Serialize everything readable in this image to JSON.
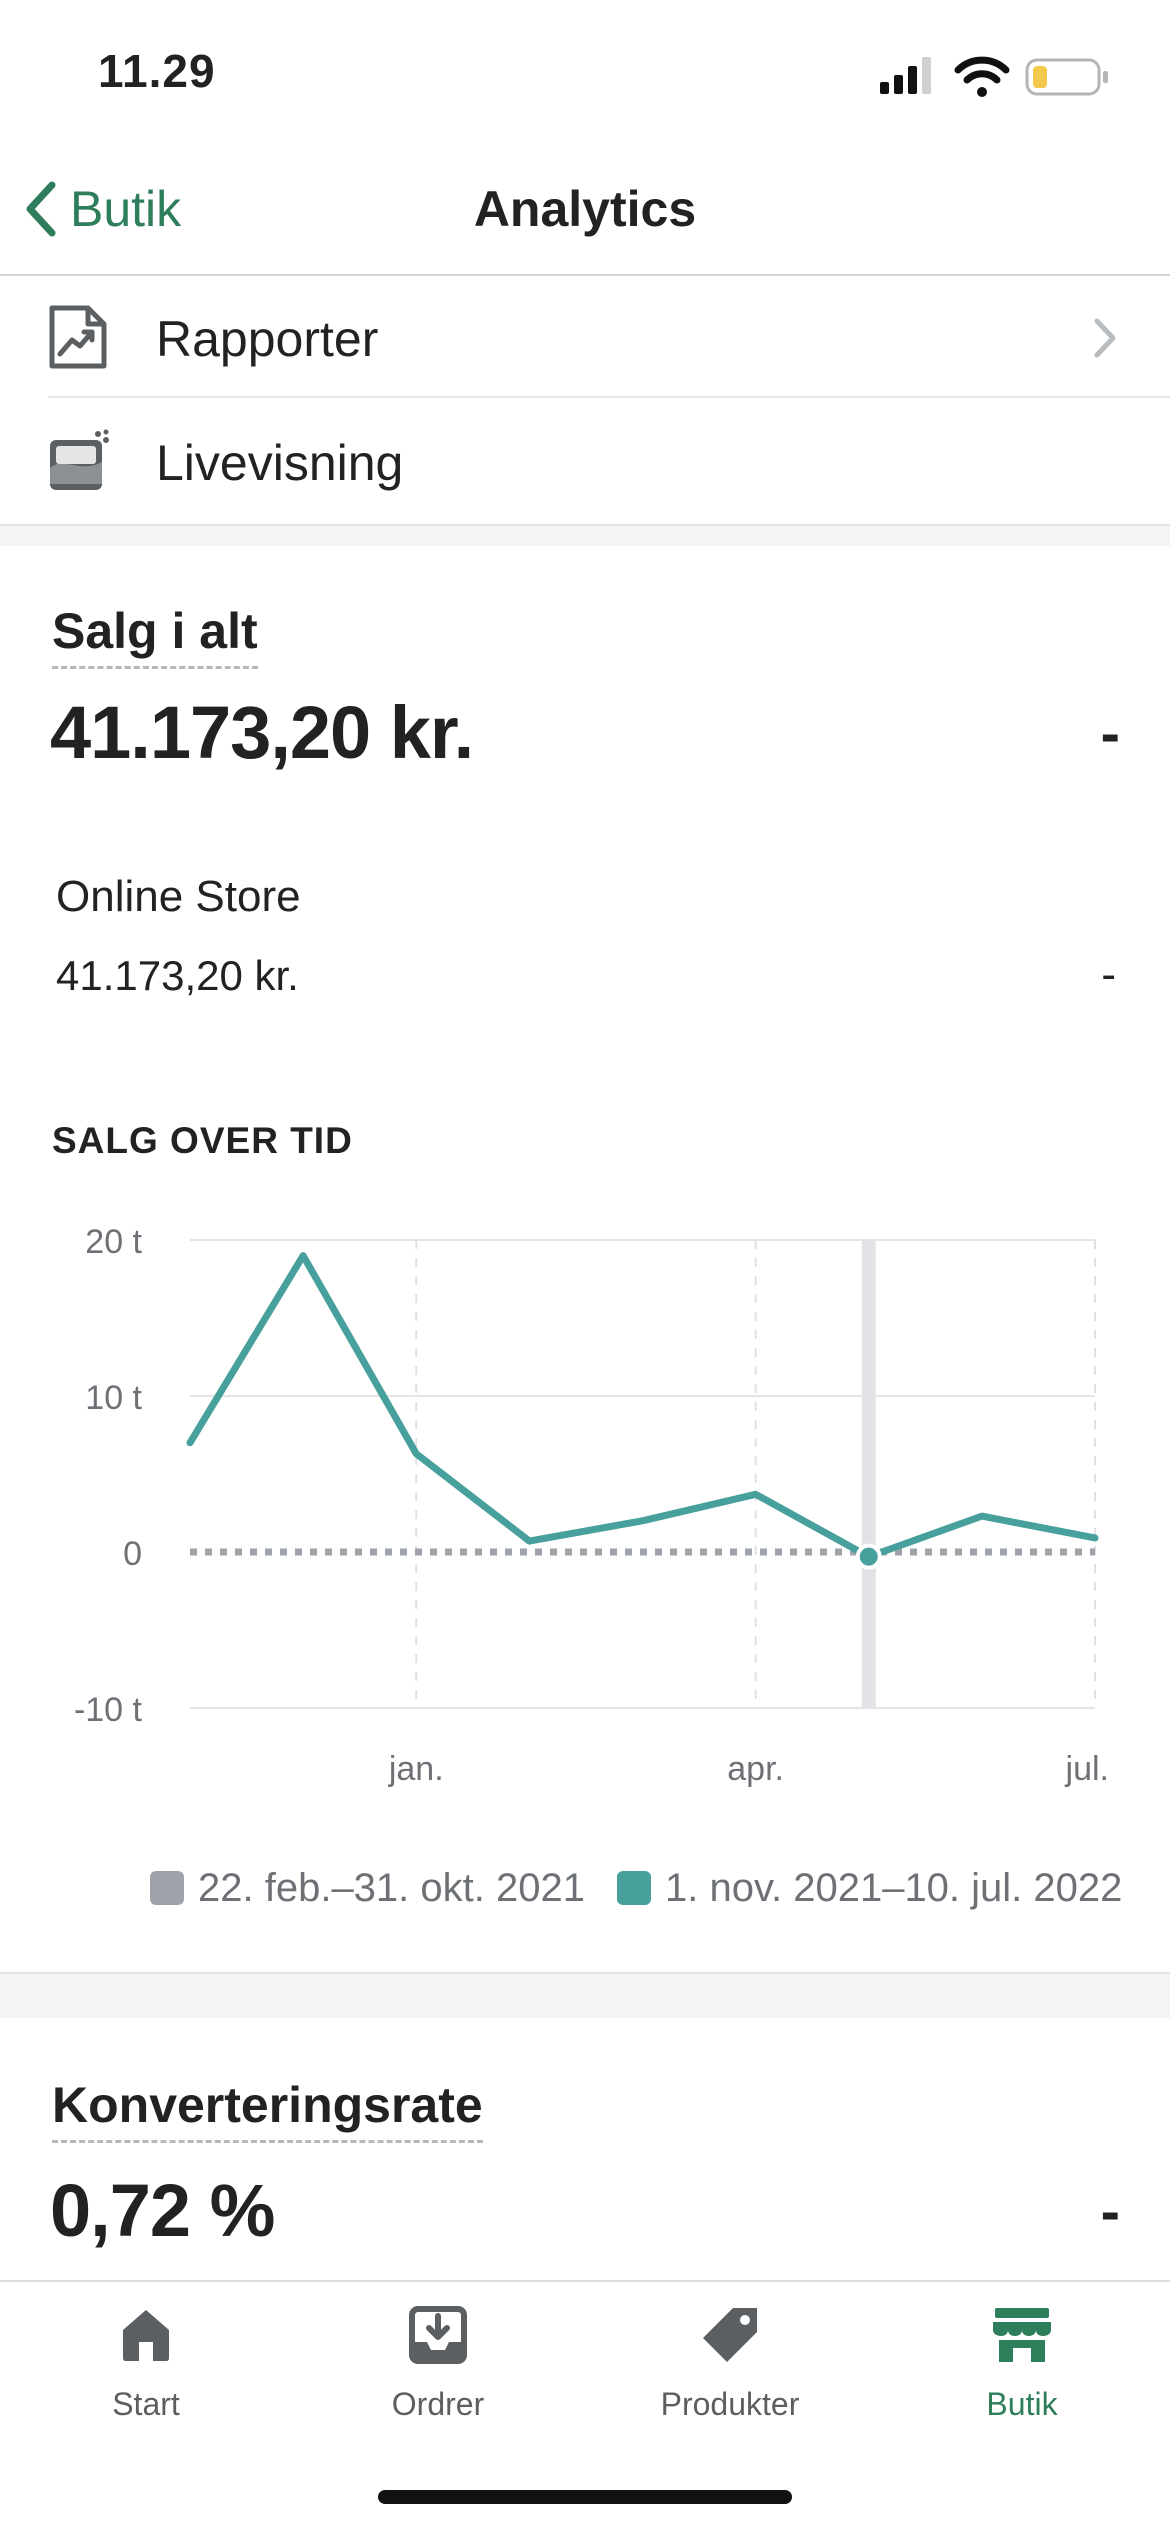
{
  "status_bar": {
    "time": "11.29"
  },
  "nav": {
    "back_label": "Butik",
    "title": "Analytics"
  },
  "menu": [
    {
      "label": "Rapporter",
      "icon": "report-icon"
    },
    {
      "label": "Livevisning",
      "icon": "live-view-icon"
    }
  ],
  "sales": {
    "title": "Salg i alt",
    "value": "41.173,20 kr.",
    "change": "-",
    "channel_label": "Online Store",
    "channel_value": "41.173,20 kr.",
    "channel_change": "-",
    "section_label": "SALG OVER TID"
  },
  "chart_data": {
    "type": "line",
    "y_ticks": [
      "20 t",
      "10 t",
      "0",
      "-10 t"
    ],
    "ylim": [
      -10,
      20
    ],
    "x_ticks": [
      "jan.",
      "apr.",
      "jul."
    ],
    "series": [
      {
        "name": "22. feb.–31. okt. 2021",
        "color": "#9ea3aa",
        "style": "dotted",
        "values": [
          0,
          0,
          0,
          0,
          0,
          0,
          0,
          0,
          0
        ]
      },
      {
        "name": "1. nov. 2021–10. jul. 2022",
        "color": "#47a09c",
        "style": "solid",
        "values": [
          7,
          19,
          6.3,
          0.7,
          2,
          3.7,
          -0.3,
          2.3,
          0.9
        ]
      }
    ],
    "highlight_index": 6,
    "grid": true
  },
  "conversion": {
    "title": "Konverteringsrate",
    "value": "0,72 %",
    "change": "-"
  },
  "tabs": [
    {
      "label": "Start",
      "icon": "home-icon"
    },
    {
      "label": "Ordrer",
      "icon": "orders-icon"
    },
    {
      "label": "Produkter",
      "icon": "tag-icon"
    },
    {
      "label": "Butik",
      "icon": "store-icon",
      "active": true
    }
  ],
  "colors": {
    "accent": "#2e7d5b",
    "series_current": "#47a09c",
    "series_previous": "#9ea3aa"
  }
}
